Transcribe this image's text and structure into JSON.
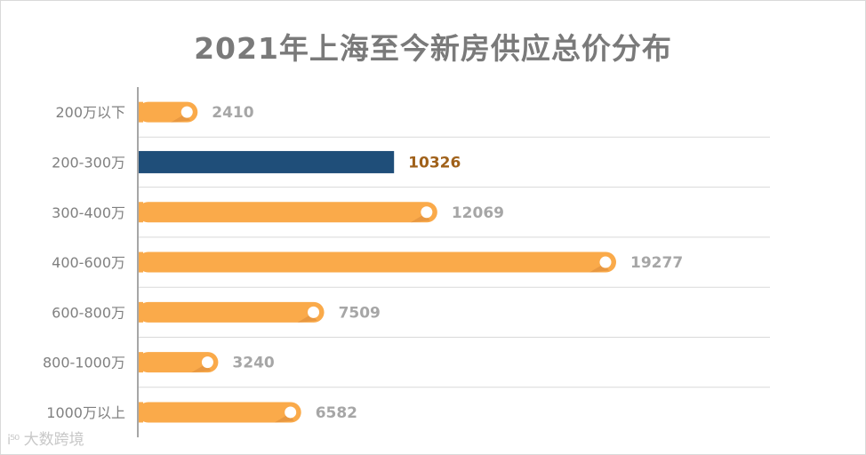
{
  "chart_data": {
    "type": "bar",
    "orientation": "horizontal",
    "title": "2021年上海至今新房供应总价分布",
    "categories": [
      "200万以下",
      "200-300万",
      "300-400万",
      "400-600万",
      "600-800万",
      "800-1000万",
      "1000万以上"
    ],
    "values": [
      2410,
      10326,
      12069,
      19277,
      7509,
      3240,
      6582
    ],
    "highlight_index": 1,
    "xlim": [
      0,
      24000
    ],
    "grid": true,
    "legend": "none",
    "colors": {
      "bar": "#FAAA4A",
      "bar_shadow": "#D9893A",
      "highlight_bar": "#1F4E79",
      "highlight_label": "#A0611A",
      "value_label": "#A6A6A6",
      "category_label": "#808080",
      "title": "#7A7A7A",
      "grid": "#D9D9D9",
      "axis": "#A6A6A6"
    }
  },
  "watermark": {
    "logo": "i⁵⁰",
    "text": "大数跨境"
  }
}
